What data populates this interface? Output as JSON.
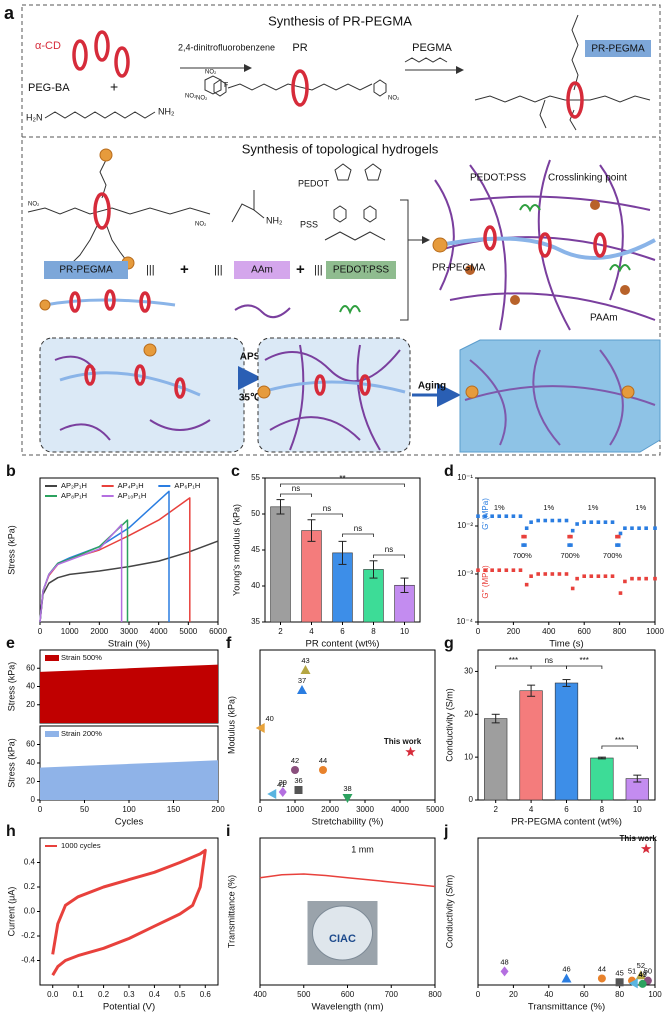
{
  "diagram": {
    "panel": "a",
    "section1_title": "Synthesis of PR-PEGMA",
    "alpha_cd": "α-CD",
    "peg_ba": "PEG-BA",
    "plus": "+",
    "h2n": "H₂N",
    "nh2": "NH₂",
    "no2": "NO₂",
    "f": "F",
    "reagent": "2,4-dinitrofluorobenzene",
    "pr": "PR",
    "pegma": "PEGMA",
    "pr_pegma_tag": "PR-PEGMA",
    "section2_title": "Synthesis of  topological hydrogels",
    "pedot": "PEDOT",
    "pss": "PSS",
    "pr_pegma_box": "PR-PEGMA",
    "bars": "|||",
    "aam": "AAm",
    "pedot_pss_box": "PEDOT:PSS",
    "pedot_pss_label": "PEDOT:PSS",
    "crosslink": "Crosslinking point",
    "pr_pegma_label": "PR-PEGMA",
    "paam": "PAAm",
    "aps": "APS",
    "temp": "35℃",
    "aging": "Aging"
  },
  "chart_data": [
    {
      "panel": "b",
      "type": "line",
      "xlabel": "Strain (%)",
      "ylabel": "Stress (kPa)",
      "xlim": [
        0,
        6000
      ],
      "xticks": [
        0,
        1000,
        2000,
        3000,
        4000,
        5000,
        6000
      ],
      "ylim": [
        0,
        130
      ],
      "legend": "upper left",
      "series": [
        {
          "name": "AP₂P₁H",
          "color": "#444444",
          "x": [
            0,
            100,
            300,
            600,
            1000,
            2000,
            3000,
            4000,
            5000,
            6000
          ],
          "values": [
            0,
            25,
            35,
            40,
            43,
            46,
            50,
            55,
            63,
            73
          ]
        },
        {
          "name": "AP₄P₁H",
          "color": "#e8413c",
          "x": [
            0,
            100,
            300,
            600,
            1000,
            2000,
            3000,
            4000,
            5050,
            5050
          ],
          "values": [
            0,
            28,
            42,
            52,
            57,
            65,
            78,
            92,
            112,
            0
          ]
        },
        {
          "name": "AP₆P₁H",
          "color": "#2a7de1",
          "x": [
            0,
            100,
            300,
            600,
            1000,
            2000,
            3000,
            4350,
            4350
          ],
          "values": [
            0,
            28,
            43,
            53,
            58,
            68,
            85,
            118,
            0
          ]
        },
        {
          "name": "AP₈P₁H",
          "color": "#2ca25f",
          "x": [
            0,
            100,
            300,
            600,
            1000,
            2000,
            2950,
            2950
          ],
          "values": [
            0,
            28,
            43,
            53,
            57,
            68,
            92,
            0
          ]
        },
        {
          "name": "AP₁₀P₁H",
          "color": "#b46fe0",
          "x": [
            0,
            100,
            300,
            600,
            1000,
            2000,
            2750,
            2750
          ],
          "values": [
            0,
            28,
            43,
            52,
            56,
            66,
            88,
            0
          ]
        }
      ]
    },
    {
      "panel": "c",
      "type": "bar",
      "xlabel": "PR content (wt%)",
      "ylabel": "Young's modulus (kPa)",
      "categories": [
        "2",
        "4",
        "6",
        "8",
        "10"
      ],
      "values": [
        51,
        47.7,
        44.6,
        42.3,
        40.1
      ],
      "errors": [
        1,
        1.5,
        1.6,
        1.2,
        1
      ],
      "colors": [
        "#9e9e9e",
        "#f47c7c",
        "#3d8ee8",
        "#3ddc97",
        "#c38cf0"
      ],
      "ylim": [
        35,
        55
      ],
      "yticks": [
        35,
        40,
        45,
        50,
        55
      ],
      "annotations": [
        "**",
        "ns",
        "ns",
        "ns",
        "ns"
      ]
    },
    {
      "panel": "d",
      "type": "scatter",
      "xlabel": "Time (s)",
      "xlim": [
        0,
        1000
      ],
      "xticks": [
        0,
        200,
        400,
        600,
        800,
        1000
      ],
      "ylog": true,
      "ylim": [
        0.0001,
        0.1
      ],
      "yticks": [
        {
          "value": 0.0001,
          "label": "10⁻⁴"
        },
        {
          "value": 0.001,
          "label": "10⁻³"
        },
        {
          "value": 0.01,
          "label": "10⁻²"
        },
        {
          "value": 0.1,
          "label": "10⁻¹"
        }
      ],
      "annotations": [
        "1%",
        "700%",
        "1%",
        "700%",
        "1%",
        "700%",
        "1%"
      ],
      "series": [
        {
          "name": "G' (MPa)",
          "color": "#2a7de1",
          "x": [
            0,
            40,
            80,
            120,
            160,
            200,
            240,
            255,
            265,
            275,
            300,
            340,
            380,
            420,
            460,
            500,
            515,
            525,
            535,
            560,
            600,
            640,
            680,
            720,
            760,
            785,
            795,
            805,
            830,
            870,
            910,
            950,
            1000
          ],
          "values": [
            0.016,
            0.016,
            0.016,
            0.016,
            0.016,
            0.016,
            0.016,
            0.004,
            0.004,
            0.009,
            0.012,
            0.013,
            0.013,
            0.013,
            0.013,
            0.013,
            0.004,
            0.004,
            0.008,
            0.011,
            0.012,
            0.012,
            0.012,
            0.012,
            0.012,
            0.004,
            0.004,
            0.007,
            0.009,
            0.009,
            0.009,
            0.009,
            0.009
          ]
        },
        {
          "name": "G'' (MPa)",
          "color": "#e8413c",
          "x": [
            0,
            40,
            80,
            120,
            160,
            200,
            240,
            255,
            265,
            275,
            300,
            340,
            380,
            420,
            460,
            500,
            515,
            525,
            535,
            560,
            600,
            640,
            680,
            720,
            760,
            785,
            795,
            805,
            830,
            870,
            910,
            950,
            1000
          ],
          "values": [
            0.0012,
            0.0012,
            0.0012,
            0.0012,
            0.0012,
            0.0012,
            0.0012,
            0.006,
            0.006,
            0.0006,
            0.0009,
            0.001,
            0.001,
            0.001,
            0.001,
            0.001,
            0.006,
            0.006,
            0.0005,
            0.0008,
            0.0009,
            0.0009,
            0.0009,
            0.0009,
            0.0009,
            0.006,
            0.006,
            0.0004,
            0.0007,
            0.0008,
            0.0008,
            0.0008,
            0.0008
          ]
        }
      ]
    },
    {
      "panel": "e",
      "type": "area",
      "ylabel": "Stress (kPa)",
      "xlim": [
        0,
        200
      ],
      "ylim": [
        0,
        80
      ],
      "yticks": [
        20,
        40,
        60
      ],
      "legend": "upper left",
      "series": [
        {
          "name": "Strain 500%",
          "color": "#c00000",
          "x": [
            0,
            50,
            100,
            150,
            200
          ],
          "values": [
            56,
            58,
            60,
            62,
            64
          ]
        }
      ]
    },
    {
      "type": "area",
      "xlabel": "Cycles",
      "ylabel": "Stress (kPa)",
      "xlim": [
        0,
        200
      ],
      "xticks": [
        0,
        50,
        100,
        150,
        200
      ],
      "ylim": [
        0,
        80
      ],
      "yticks": [
        0,
        20,
        40,
        60
      ],
      "legend": "upper left",
      "series": [
        {
          "name": "Strain 200%",
          "color": "#8fb3e8",
          "x": [
            0,
            50,
            100,
            150,
            200
          ],
          "values": [
            35,
            37,
            39,
            41,
            43
          ]
        }
      ]
    },
    {
      "panel": "f",
      "type": "scatter",
      "xlabel": "Stretchability (%)",
      "ylabel": "Modulus (kPa)",
      "xlim": [
        0,
        5000
      ],
      "xticks": [
        0,
        1000,
        2000,
        3000,
        4000,
        5000
      ],
      "ylim": [
        0,
        150
      ],
      "labels": [
        "43",
        "37",
        "40",
        "42",
        "44",
        "36",
        "39",
        "41",
        "38",
        "This work"
      ],
      "x": [
        1300,
        1200,
        20,
        1000,
        1800,
        1100,
        650,
        350,
        2500,
        4300
      ],
      "values": [
        130,
        110,
        72,
        30,
        30,
        10,
        8,
        6,
        2,
        48
      ],
      "colors": [
        "#b5a642",
        "#2a7de1",
        "#e8a33c",
        "#8a4f7d",
        "#e8822c",
        "#555555",
        "#b46fe0",
        "#5ab4e0",
        "#2ca25f",
        "#d62b3a"
      ],
      "markers": [
        "triangle",
        "triangle",
        "triangle-left",
        "circle",
        "circle",
        "square",
        "diamond",
        "triangle-left",
        "triangle-down",
        "star"
      ]
    },
    {
      "panel": "g",
      "type": "bar",
      "xlabel": "PR-PEGMA content (wt%)",
      "ylabel": "Conductivity (S/m)",
      "categories": [
        "2",
        "4",
        "6",
        "8",
        "10"
      ],
      "values": [
        19,
        25.5,
        27.3,
        9.8,
        5
      ],
      "errors": [
        1,
        1.3,
        0.8,
        0.2,
        0.8
      ],
      "colors": [
        "#9e9e9e",
        "#f47c7c",
        "#3d8ee8",
        "#3ddc97",
        "#c38cf0"
      ],
      "ylim": [
        0,
        35
      ],
      "yticks": [
        0,
        10,
        20,
        30
      ],
      "annotations": [
        "***",
        "ns",
        "***",
        "***"
      ]
    },
    {
      "panel": "h",
      "type": "line",
      "xlabel": "Potential (V)",
      "ylabel": "Current (μA)",
      "xlim": [
        -0.05,
        0.65
      ],
      "xticks": [
        {
          "value": 0,
          "label": "0.0"
        },
        0.1,
        0.2,
        0.3,
        0.4,
        0.5,
        0.6
      ],
      "ylim": [
        -0.6,
        0.6
      ],
      "yticks": [
        -0.4,
        -0.2,
        {
          "value": 0,
          "label": "0.0"
        },
        0.2,
        0.4
      ],
      "legend": "upper left",
      "series": [
        {
          "name": "1000 cycles",
          "color": "#e8413c",
          "x": [
            0,
            0.02,
            0.05,
            0.1,
            0.2,
            0.3,
            0.4,
            0.5,
            0.58,
            0.6,
            0.58,
            0.55,
            0.5,
            0.4,
            0.3,
            0.2,
            0.1,
            0.05,
            0.02,
            0
          ],
          "values": [
            -0.35,
            -0.1,
            0.05,
            0.12,
            0.2,
            0.26,
            0.32,
            0.4,
            0.47,
            0.5,
            0.2,
            0.05,
            -0.02,
            -0.12,
            -0.22,
            -0.3,
            -0.36,
            -0.4,
            -0.45,
            -0.52
          ]
        }
      ]
    },
    {
      "panel": "i",
      "type": "line",
      "xlabel": "Wavelength (nm)",
      "ylabel": "Transmittance (%)",
      "xlim": [
        400,
        800
      ],
      "xticks": [
        400,
        500,
        600,
        700,
        800
      ],
      "ylim": [
        0,
        100
      ],
      "annotation": "1 mm",
      "photo_text": "CIAC",
      "series": [
        {
          "color": "#e8413c",
          "x": [
            400,
            450,
            500,
            550,
            600,
            650,
            700,
            750,
            800
          ],
          "values": [
            73,
            75,
            75.5,
            74.5,
            73,
            71.5,
            70,
            68.5,
            67
          ]
        }
      ]
    },
    {
      "panel": "j",
      "type": "scatter",
      "xlabel": "Transmittance (%)",
      "ylabel": "Conductivity (S/m)",
      "xlim": [
        0,
        100
      ],
      "xticks": [
        0,
        20,
        40,
        60,
        80,
        100
      ],
      "ylim": [
        0,
        27
      ],
      "labels": [
        "This work",
        "48",
        "46",
        "44",
        "45",
        "51",
        "52",
        "47",
        "50",
        "49"
      ],
      "x": [
        95,
        15,
        50,
        70,
        80,
        87,
        92,
        88,
        96,
        93
      ],
      "values": [
        25,
        2.5,
        1.2,
        1.2,
        0.5,
        0.8,
        1.8,
        0.3,
        0.8,
        0.2
      ],
      "colors": [
        "#d62b3a",
        "#b46fe0",
        "#2a7de1",
        "#e8822c",
        "#555555",
        "#e8822c",
        "#b5a642",
        "#5ab4e0",
        "#8a4f7d",
        "#2ca25f"
      ],
      "markers": [
        "star",
        "diamond",
        "triangle",
        "circle",
        "square",
        "circle",
        "triangle",
        "triangle-left",
        "circle",
        "circle"
      ]
    }
  ]
}
